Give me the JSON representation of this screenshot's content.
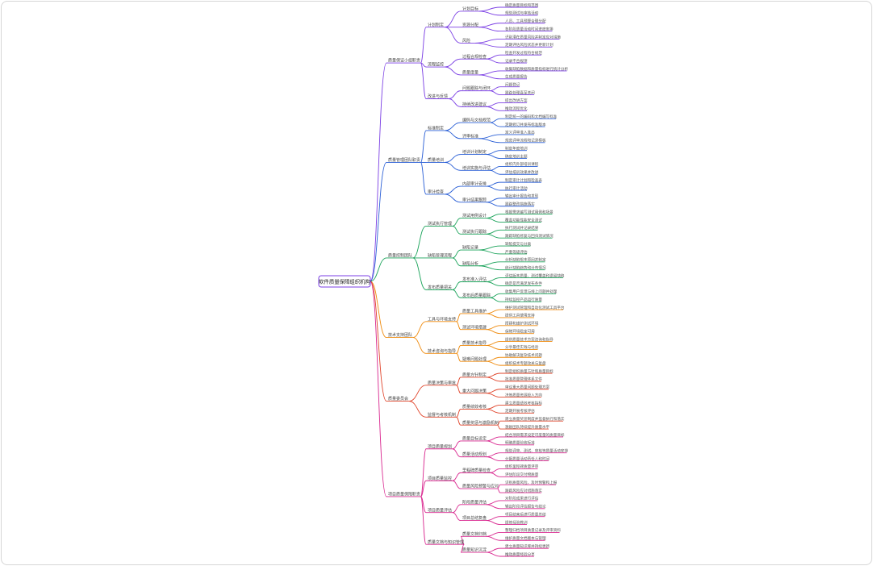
{
  "root": "软件质量保障组织机构",
  "colors": [
    "#7b3fe4",
    "#2a5fd6",
    "#1aa35a",
    "#ef8a0c",
    "#e0442a",
    "#d9278f"
  ],
  "branches": [
    {
      "label": "质量保证小组职责",
      "children": [
        {
          "label": "计划制定",
          "children": [
            {
              "label": "计划目标",
              "children": [
                "确定质量目标和范围",
                "规划测试与审核活动"
              ]
            },
            {
              "label": "资源分配",
              "children": [
                "人员、工具预算合理分配",
                "各阶段质量活动时间进度安排"
              ]
            },
            {
              "label": "风险",
              "children": [
                "识别潜在质量风险并制定应对措施",
                "定期评估风险状态并更新计划"
              ]
            }
          ]
        },
        {
          "label": "流程监控",
          "children": [
            {
              "label": "过程合规检查",
              "children": [
                "检查开发过程符合规范",
                "记录不合规项"
              ]
            },
            {
              "label": "质量度量",
              "children": [
                "收集缺陷数据和质量指标进行统计分析",
                "生成质量报告"
              ]
            }
          ]
        },
        {
          "label": "改进与反馈",
          "children": [
            {
              "label": "问题跟踪与闭环",
              "children": [
                "问题登记",
                "跟踪处理直至关闭"
              ]
            },
            {
              "label": "持续改进建议",
              "children": [
                "提出改进方案",
                "推动流程优化"
              ]
            }
          ]
        }
      ]
    },
    {
      "label": "质量管理团队职责",
      "children": [
        {
          "label": "标准制定",
          "children": [
            {
              "label": "编码与文档规范",
              "children": [
                "制定统一的编码和文档编写标准",
                "定期修订并发布标准版本"
              ]
            },
            {
              "label": "评审标准",
              "children": [
                "定义评审准入准出",
                "规范评审流程和记录模板"
              ]
            }
          ]
        },
        {
          "label": "质量培训",
          "children": [
            {
              "label": "培训计划制定",
              "children": [
                "制定年度培训",
                "确定培训主题"
              ]
            },
            {
              "label": "培训实施与评估",
              "children": [
                "组织内外部培训课程",
                "评估培训效果并改进"
              ]
            }
          ]
        },
        {
          "label": "审计检查",
          "children": [
            {
              "label": "内部审计安排",
              "children": [
                "制定审计计划和检查表",
                "执行审计活动"
              ]
            },
            {
              "label": "审计结果跟踪",
              "children": [
                "输出审计报告和发现",
                "跟踪整改措施落实"
              ]
            }
          ]
        }
      ]
    },
    {
      "label": "质量控制团队",
      "children": [
        {
          "label": "测试执行管理",
          "children": [
            {
              "label": "测试用例设计",
              "children": [
                "根据需求编写测试用例和场景",
                "覆盖功能性能安全测试"
              ]
            },
            {
              "label": "测试执行跟踪",
              "children": [
                "执行测试并记录结果",
                "跟踪缺陷修复与回归测试情况"
              ]
            }
          ]
        },
        {
          "label": "缺陷管理流程",
          "children": [
            {
              "label": "缺陷记录",
              "children": [
                "缺陷提交与分类",
                "严重等级评估"
              ]
            },
            {
              "label": "缺陷分析",
              "children": [
                "分析缺陷根本原因并制定",
                "统计缺陷趋势和分布情况"
              ]
            }
          ]
        },
        {
          "label": "发布质量把关",
          "children": [
            {
              "label": "发布准入评估",
              "children": [
                "评估版本质量、测试覆盖和遗留缺陷",
                "确定是否满足发布条件"
              ]
            },
            {
              "label": "发布后质量跟踪",
              "children": [
                "收集用户反馈与线上问题并处理",
                "持续监控产品运行质量"
              ]
            }
          ]
        }
      ]
    },
    {
      "label": "技术支持团队",
      "children": [
        {
          "label": "工具与环境支持",
          "children": [
            {
              "label": "质量工具维护",
              "children": [
                "维护测试管理和自动化测试工具平台",
                "提供工具使用支持"
              ]
            },
            {
              "label": "测试环境搭建",
              "children": [
                "搭建和维护测试环境",
                "保障环境稳定可用"
              ]
            }
          ]
        },
        {
          "label": "技术咨询与指导",
          "children": [
            {
              "label": "质量技术指导",
              "children": [
                "提供质量技术方案咨询和指导",
                "分享最佳实践与经验"
              ]
            },
            {
              "label": "疑难问题处理",
              "children": [
                "协助解决复杂技术问题",
                "组织技术专题攻关与复盘"
              ]
            }
          ]
        }
      ]
    },
    {
      "label": "质量委员会",
      "children": [
        {
          "label": "质量决策与审批",
          "children": [
            {
              "label": "质量方针制定",
              "children": [
                "制定组织质量方针和质量目标",
                "批准质量管理体系文件"
              ]
            },
            {
              "label": "重大问题决策",
              "children": [
                "审议重大质量问题处理方案",
                "决策质量资源投入方向"
              ]
            }
          ]
        },
        {
          "label": "监督与考核机制",
          "children": [
            {
              "label": "质量绩效考核",
              "children": [
                "建立质量绩效考核指标",
                "定期开展考核评估"
              ]
            },
            {
              "label": "质量奖惩与激励机制",
              "children": [
                "建立质量奖惩制度并监督执行和落实",
                "激励团队持续提升质量水平"
              ]
            }
          ]
        }
      ]
    },
    {
      "label": "项目质量保障职责",
      "children": [
        {
          "label": "项目质量规划",
          "children": [
            {
              "label": "质量目标设定",
              "children": [
                "结合项目需求设定可度量的质量目标",
                "明确质量验收标准"
              ]
            },
            {
              "label": "质量活动规划",
              "children": [
                "规划评审、测试、审核等质量活动安排",
                "分配质量活动责任人和时间"
              ]
            }
          ]
        },
        {
          "label": "项目质量监控",
          "children": [
            {
              "label": "里程碑质量检查",
              "children": [
                "组织里程碑质量评审",
                "评估阶段交付物质量"
              ]
            },
            {
              "label": "质量风险预警与应对",
              "children": [
                "识别质量风险、及时预警和上报",
                "跟踪风险应对措施落实"
              ]
            }
          ]
        },
        {
          "label": "项目质量评估",
          "children": [
            {
              "label": "阶段质量评估",
              "children": [
                "对阶段成果进行评估",
                "输出阶段评估报告与结论"
              ]
            },
            {
              "label": "项目总结复盘",
              "children": [
                "项目结束后进行质量总结",
                "提炼经验教训"
              ]
            }
          ]
        },
        {
          "label": "质量文档与知识管理",
          "children": [
            {
              "label": "质量文档归档",
              "children": [
                "整理归档项目质量记录及评审资料",
                "维护质量文档版本与管理"
              ]
            },
            {
              "label": "质量知识沉淀",
              "children": [
                "建立质量知识库并持续更新",
                "推动质量经验分享"
              ]
            }
          ]
        }
      ]
    }
  ]
}
